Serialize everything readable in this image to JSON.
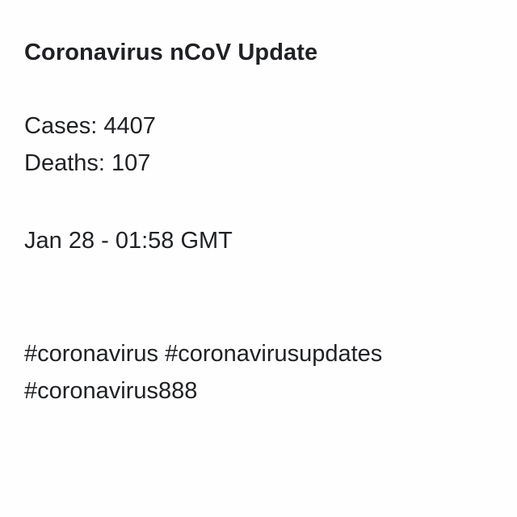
{
  "post": {
    "title": "Coronavirus nCoV Update",
    "cases": "Cases: 4407",
    "deaths": "Deaths: 107",
    "timestamp": "Jan 28 - 01:58 GMT",
    "hashtags_line1": "#coronavirus #coronavirusupdates",
    "hashtags_line2": "#coronavirus888"
  },
  "colors": {
    "background": "#fefefe",
    "text": "#1f2124"
  }
}
